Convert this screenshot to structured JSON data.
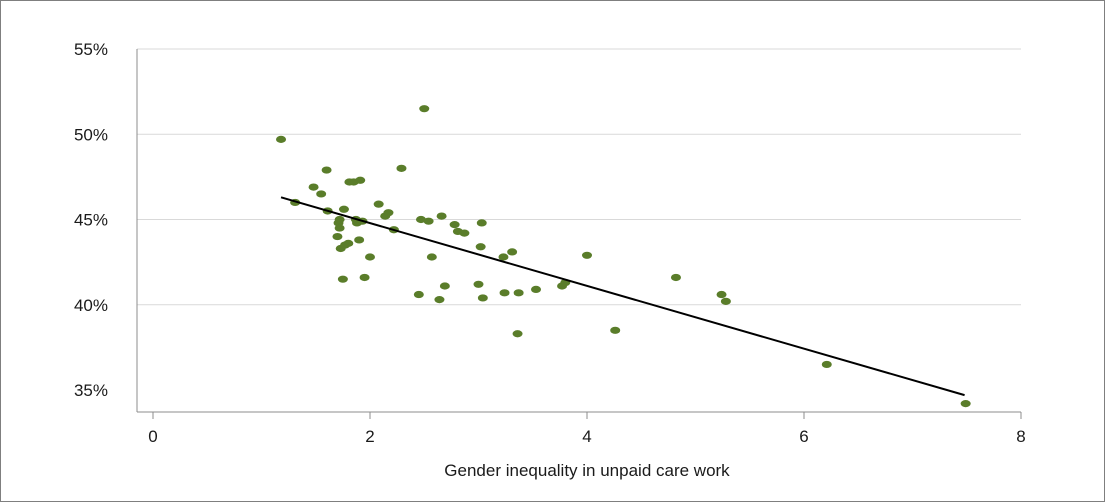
{
  "chart_data": {
    "type": "scatter",
    "title": "",
    "xlabel": "Gender inequality in unpaid care work",
    "ylabel": "",
    "xlim": [
      0,
      8
    ],
    "ylim": [
      35,
      55
    ],
    "x_ticks": [
      0,
      2,
      4,
      6,
      8
    ],
    "y_ticks": [
      35,
      40,
      45,
      50,
      55
    ],
    "x_tick_labels": [
      "0",
      "2",
      "4",
      "6",
      "8"
    ],
    "y_tick_labels": [
      "35%",
      "40%",
      "45%",
      "50%",
      "55%"
    ],
    "grid": "horizontal",
    "legend": "none",
    "colors": {
      "points": "#5a7d2a",
      "trendline": "#000000",
      "grid": "#d9d9d9"
    },
    "trendline": {
      "x": [
        1.18,
        7.48
      ],
      "y": [
        46.3,
        34.7
      ]
    },
    "points": [
      {
        "x": 1.18,
        "y": 49.7
      },
      {
        "x": 1.31,
        "y": 46.0
      },
      {
        "x": 1.48,
        "y": 46.9
      },
      {
        "x": 1.55,
        "y": 46.5
      },
      {
        "x": 1.6,
        "y": 47.9
      },
      {
        "x": 1.61,
        "y": 45.5
      },
      {
        "x": 1.7,
        "y": 44.0
      },
      {
        "x": 1.71,
        "y": 44.8
      },
      {
        "x": 1.72,
        "y": 45.0
      },
      {
        "x": 1.72,
        "y": 44.5
      },
      {
        "x": 1.73,
        "y": 43.3
      },
      {
        "x": 1.75,
        "y": 41.5
      },
      {
        "x": 1.76,
        "y": 45.6
      },
      {
        "x": 1.77,
        "y": 43.5
      },
      {
        "x": 1.8,
        "y": 43.6
      },
      {
        "x": 1.81,
        "y": 47.2
      },
      {
        "x": 1.85,
        "y": 47.2
      },
      {
        "x": 1.87,
        "y": 45.0
      },
      {
        "x": 1.88,
        "y": 44.8
      },
      {
        "x": 1.9,
        "y": 43.8
      },
      {
        "x": 1.91,
        "y": 47.3
      },
      {
        "x": 1.93,
        "y": 44.9
      },
      {
        "x": 1.95,
        "y": 41.6
      },
      {
        "x": 2.0,
        "y": 42.8
      },
      {
        "x": 2.08,
        "y": 45.9
      },
      {
        "x": 2.14,
        "y": 45.2
      },
      {
        "x": 2.17,
        "y": 45.4
      },
      {
        "x": 2.22,
        "y": 44.4
      },
      {
        "x": 2.29,
        "y": 48.0
      },
      {
        "x": 2.45,
        "y": 40.6
      },
      {
        "x": 2.47,
        "y": 45.0
      },
      {
        "x": 2.5,
        "y": 51.5
      },
      {
        "x": 2.54,
        "y": 44.9
      },
      {
        "x": 2.57,
        "y": 42.8
      },
      {
        "x": 2.64,
        "y": 40.3
      },
      {
        "x": 2.66,
        "y": 45.2
      },
      {
        "x": 2.69,
        "y": 41.1
      },
      {
        "x": 2.78,
        "y": 44.7
      },
      {
        "x": 2.81,
        "y": 44.3
      },
      {
        "x": 2.87,
        "y": 44.2
      },
      {
        "x": 3.0,
        "y": 41.2
      },
      {
        "x": 3.02,
        "y": 43.4
      },
      {
        "x": 3.03,
        "y": 44.8
      },
      {
        "x": 3.04,
        "y": 40.4
      },
      {
        "x": 3.23,
        "y": 42.8
      },
      {
        "x": 3.24,
        "y": 40.7
      },
      {
        "x": 3.31,
        "y": 43.1
      },
      {
        "x": 3.36,
        "y": 38.3
      },
      {
        "x": 3.37,
        "y": 40.7
      },
      {
        "x": 3.53,
        "y": 40.9
      },
      {
        "x": 3.77,
        "y": 41.1
      },
      {
        "x": 3.8,
        "y": 41.3
      },
      {
        "x": 4.0,
        "y": 42.9
      },
      {
        "x": 4.26,
        "y": 38.5
      },
      {
        "x": 4.82,
        "y": 41.6
      },
      {
        "x": 5.24,
        "y": 40.6
      },
      {
        "x": 5.28,
        "y": 40.2
      },
      {
        "x": 6.21,
        "y": 36.5
      },
      {
        "x": 7.49,
        "y": 34.2
      }
    ]
  }
}
